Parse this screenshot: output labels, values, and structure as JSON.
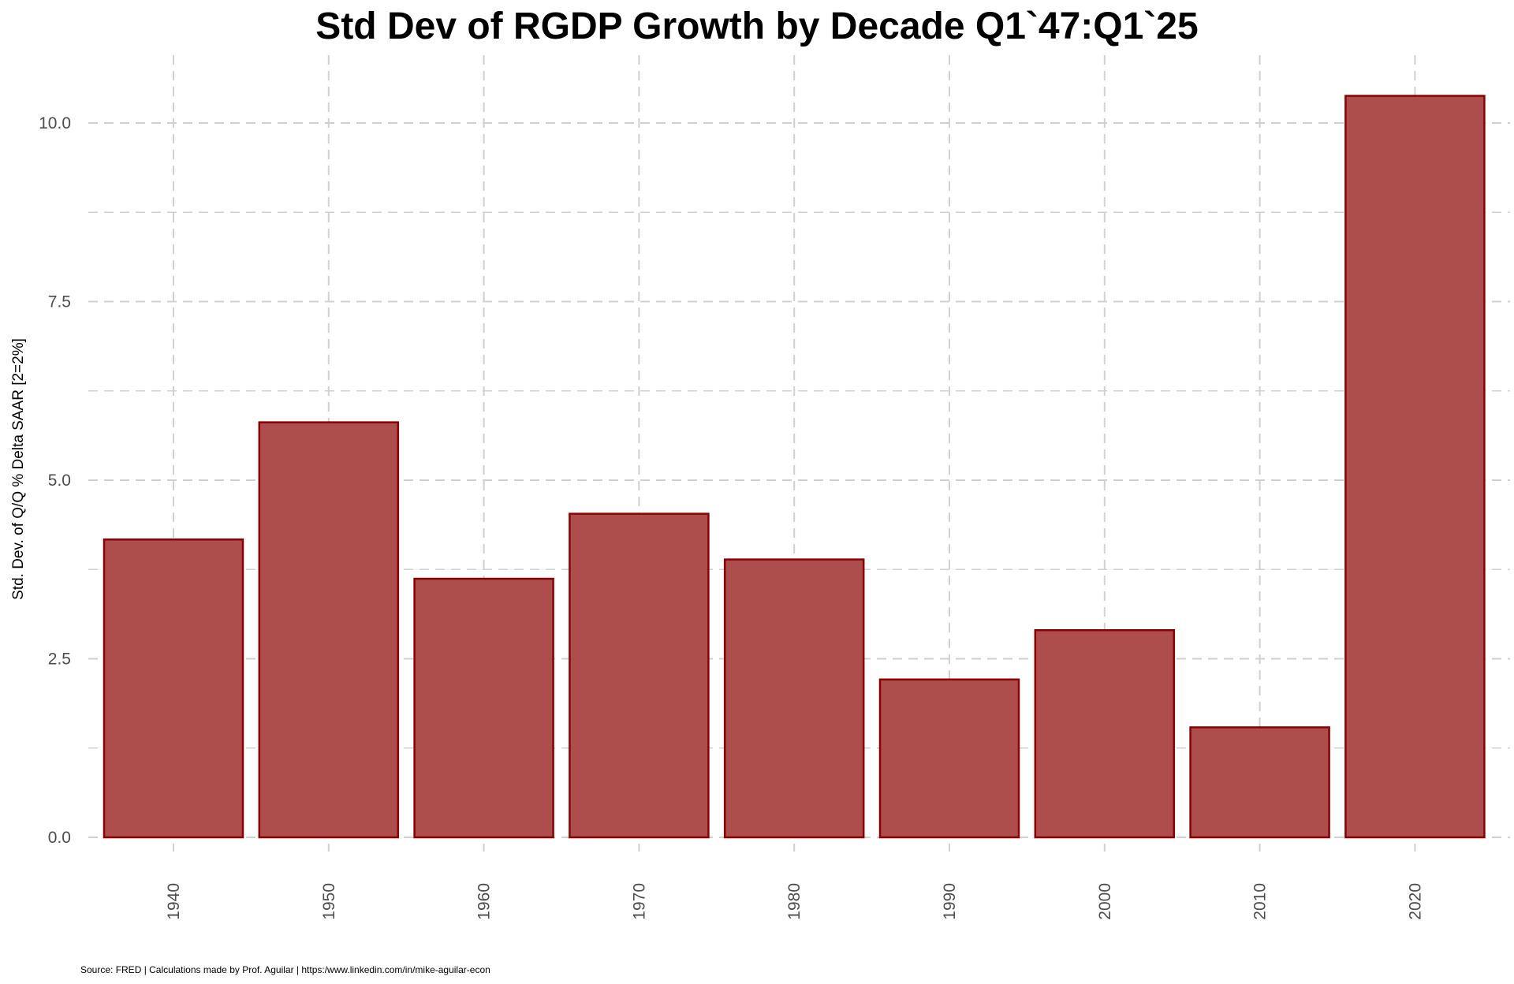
{
  "chart_data": {
    "type": "bar",
    "title": "Std Dev of RGDP Growth by Decade Q1`47:Q1`25",
    "xlabel": "",
    "ylabel": "Std. Dev. of Q/Q % Delta SAAR [2=2%]",
    "caption": "Source: FRED | Calculations made by Prof. Aguilar | https:/www.linkedin.com/in/mike-aguilar-econ",
    "categories": [
      "1940",
      "1950",
      "1960",
      "1970",
      "1980",
      "1990",
      "2000",
      "2010",
      "2020"
    ],
    "values": [
      4.17,
      5.81,
      3.62,
      4.53,
      3.89,
      2.21,
      2.9,
      1.54,
      10.38
    ],
    "yticks": [
      "0.0",
      "2.5",
      "5.0",
      "7.5",
      "10.0"
    ],
    "ylim": [
      0,
      10.8
    ],
    "grid": true,
    "colors": {
      "fill": "#AD4D4C",
      "stroke": "#8B0000",
      "grid": "#d0d0d0"
    }
  }
}
